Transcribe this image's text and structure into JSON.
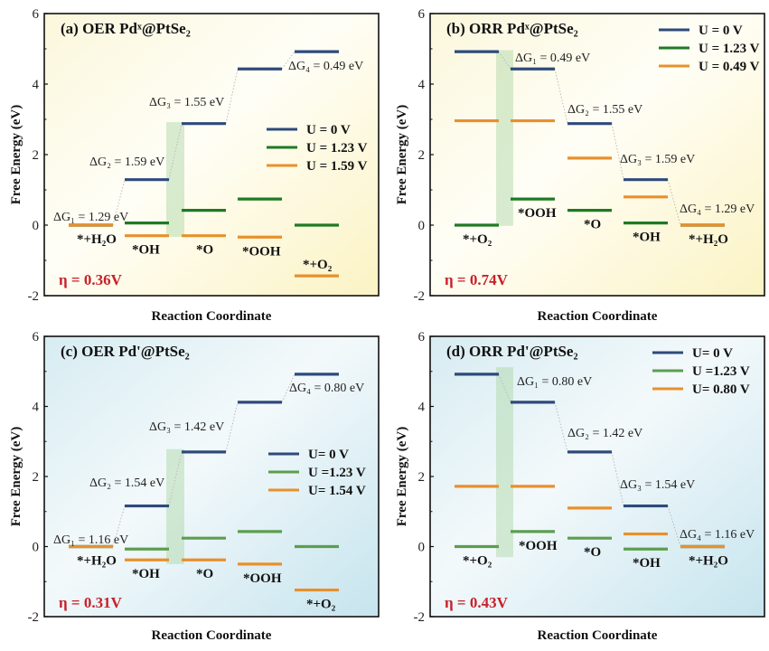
{
  "chart_data": [
    {
      "type": "energy-level-diagram",
      "panel": "(a)",
      "reaction": "OER",
      "catalyst": "Pd^x@PtSe_2",
      "title": "(a) OER Pdˣ@PtSe₂",
      "xlabel": "Reaction Coordinate",
      "ylabel": "Free Energy (eV)",
      "ylim": [
        -2,
        6
      ],
      "yticks": [
        -2,
        0,
        2,
        4,
        6
      ],
      "background": "yellow",
      "species": [
        "*+H₂O",
        "*OH",
        "*O",
        "*OOH",
        "*+O₂"
      ],
      "series": [
        {
          "name": "U = 0 V",
          "color": "#2e4a7a",
          "values": [
            0,
            1.29,
            2.88,
            4.43,
            4.92
          ]
        },
        {
          "name": "U = 1.23 V",
          "color": "#1f7a24",
          "values": [
            0,
            0.06,
            0.42,
            0.74,
            0.0
          ]
        },
        {
          "name": "U = 1.59 V",
          "color": "#e8902c",
          "values": [
            0,
            -0.3,
            -0.3,
            -0.34,
            -1.44
          ]
        }
      ],
      "delta_g": [
        {
          "label": "ΔG₁ = 1.29 eV",
          "step": 1
        },
        {
          "label": "ΔG₂ = 1.59 eV",
          "step": 2
        },
        {
          "label": "ΔG₃ = 1.55 eV",
          "step": 3
        },
        {
          "label": "ΔG₄ = 0.49 eV",
          "step": 4
        }
      ],
      "highlight_step": 2,
      "highlight_range": [
        -0.33,
        2.92
      ],
      "overpotential": "η = 0.36V",
      "legend_position": "center-right"
    },
    {
      "type": "energy-level-diagram",
      "panel": "(b)",
      "reaction": "ORR",
      "catalyst": "Pd^x@PtSe_2",
      "title": "(b) ORR Pdˣ@PtSe₂",
      "xlabel": "Reaction Coordinate",
      "ylabel": "Free Energy (eV)",
      "ylim": [
        -2,
        6
      ],
      "yticks": [
        -2,
        0,
        2,
        4,
        6
      ],
      "background": "yellow",
      "species": [
        "*+O₂",
        "*OOH",
        "*O",
        "*OH",
        "*+H₂O"
      ],
      "series": [
        {
          "name": "U = 0 V",
          "color": "#2e4a7a",
          "values": [
            4.92,
            4.43,
            2.88,
            1.29,
            0
          ]
        },
        {
          "name": "U = 1.23 V",
          "color": "#1f7a24",
          "values": [
            0,
            0.74,
            0.42,
            0.06,
            0
          ]
        },
        {
          "name": "U = 0.49 V",
          "color": "#e8902c",
          "values": [
            2.96,
            2.96,
            1.9,
            0.8,
            0
          ]
        }
      ],
      "delta_g": [
        {
          "label": "ΔG₁ = 0.49 eV",
          "step": 1
        },
        {
          "label": "ΔG₂ = 1.55 eV",
          "step": 2
        },
        {
          "label": "ΔG₃ = 1.59 eV",
          "step": 3
        },
        {
          "label": "ΔG₄ = 1.29 eV",
          "step": 4
        }
      ],
      "highlight_step": 1,
      "highlight_range": [
        -0.02,
        4.96
      ],
      "overpotential": "η = 0.74V",
      "legend_position": "top-right"
    },
    {
      "type": "energy-level-diagram",
      "panel": "(c)",
      "reaction": "OER",
      "catalyst": "Pd'@PtSe_2",
      "title": "(c) OER Pd'@PtSe₂",
      "xlabel": "Reaction Coordinate",
      "ylabel": "Free Energy (eV)",
      "ylim": [
        -2,
        6
      ],
      "yticks": [
        -2,
        0,
        2,
        4,
        6
      ],
      "background": "blue",
      "species": [
        "*+H₂O",
        "*OH",
        "*O",
        "*OOH",
        "*+O₂"
      ],
      "series": [
        {
          "name": "U= 0 V",
          "color": "#2e4a7a",
          "values": [
            0,
            1.16,
            2.7,
            4.12,
            4.92
          ]
        },
        {
          "name": "U =1.23 V",
          "color": "#5c9e4e",
          "values": [
            0,
            -0.07,
            0.24,
            0.43,
            0.0
          ]
        },
        {
          "name": "U= 1.54 V",
          "color": "#e8902c",
          "values": [
            0,
            -0.38,
            -0.38,
            -0.5,
            -1.24
          ]
        }
      ],
      "delta_g": [
        {
          "label": "ΔG₁ = 1.16 eV",
          "step": 1
        },
        {
          "label": "ΔG₂ = 1.54 eV",
          "step": 2
        },
        {
          "label": "ΔG₃ = 1.42 eV",
          "step": 3
        },
        {
          "label": "ΔG₄ = 0.80 eV",
          "step": 4
        }
      ],
      "highlight_step": 2,
      "highlight_range": [
        -0.5,
        2.78
      ],
      "overpotential": "η = 0.31V",
      "legend_position": "center-right"
    },
    {
      "type": "energy-level-diagram",
      "panel": "(d)",
      "reaction": "ORR",
      "catalyst": "Pd'@PtSe_2",
      "title": "(d) ORR Pd'@PtSe₂",
      "xlabel": "Reaction Coordinate",
      "ylabel": "Free Energy (eV)",
      "ylim": [
        -2,
        6
      ],
      "yticks": [
        -2,
        0,
        2,
        4,
        6
      ],
      "background": "blue",
      "species": [
        "*+O₂",
        "*OOH",
        "*O",
        "*OH",
        "*+H₂O"
      ],
      "series": [
        {
          "name": "U= 0 V",
          "color": "#2e4a7a",
          "values": [
            4.92,
            4.12,
            2.7,
            1.16,
            0
          ]
        },
        {
          "name": "U =1.23 V",
          "color": "#5c9e4e",
          "values": [
            0,
            0.43,
            0.24,
            -0.07,
            0
          ]
        },
        {
          "name": "U= 0.80 V",
          "color": "#e8902c",
          "values": [
            1.72,
            1.72,
            1.1,
            0.36,
            0
          ]
        }
      ],
      "delta_g": [
        {
          "label": "ΔG₁ = 0.80 eV",
          "step": 1
        },
        {
          "label": "ΔG₂ = 1.42 eV",
          "step": 2
        },
        {
          "label": "ΔG₃ = 1.54 eV",
          "step": 3
        },
        {
          "label": "ΔG₄ = 1.16 eV",
          "step": 4
        }
      ],
      "highlight_step": 1,
      "highlight_range": [
        -0.3,
        5.12
      ],
      "overpotential": "η = 0.43V",
      "legend_position": "top-right"
    }
  ]
}
